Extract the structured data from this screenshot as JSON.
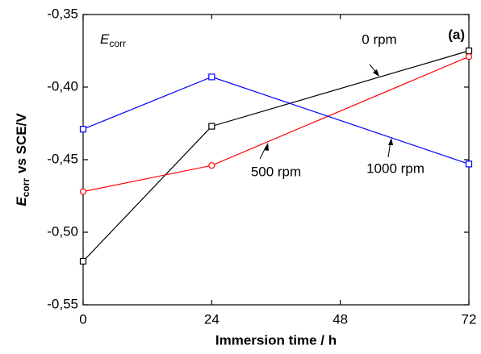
{
  "chart_data": {
    "type": "line",
    "x_label": "Immersion time / h",
    "y_label": {
      "symbol": "E",
      "subscript": "corr",
      "text": "vs SCE/V"
    },
    "annotations": {
      "panel": "(a)",
      "symbol": "E",
      "subscript": "corr"
    },
    "x": [
      0,
      24,
      72
    ],
    "xlim": [
      0,
      72
    ],
    "xticks": [
      0,
      24,
      48,
      72
    ],
    "ylim": [
      -0.55,
      -0.35
    ],
    "yticks": [
      {
        "value": -0.55,
        "label": "-0,55"
      },
      {
        "value": -0.5,
        "label": "-0,50"
      },
      {
        "value": -0.45,
        "label": "-0,45"
      },
      {
        "value": -0.4,
        "label": "-0,40"
      },
      {
        "value": -0.35,
        "label": "-0,35"
      }
    ],
    "series": [
      {
        "name": "0 rpm",
        "color": "#000000",
        "marker": "square",
        "values": [
          -0.52,
          -0.427,
          -0.375
        ]
      },
      {
        "name": "500 rpm",
        "color": "#ff0000",
        "marker": "circle",
        "values": [
          -0.472,
          -0.454,
          -0.379
        ]
      },
      {
        "name": "1000 rpm",
        "color": "#0000ff",
        "marker": "square",
        "values": [
          -0.429,
          -0.393,
          -0.453
        ]
      }
    ]
  }
}
